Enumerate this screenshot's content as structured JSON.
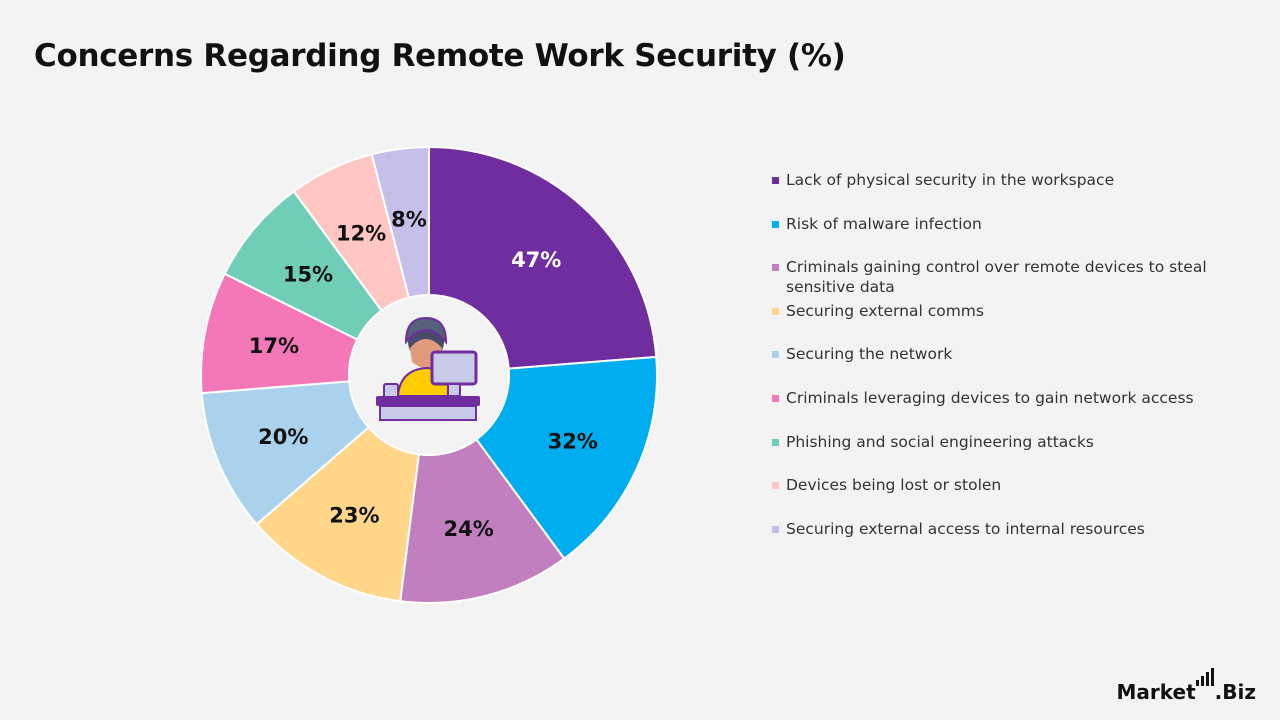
{
  "title": "Concerns Regarding Remote Work Security (%)",
  "brand": {
    "name": "Market",
    "suffix": ".Biz"
  },
  "chart_data": {
    "type": "pie",
    "title": "Concerns Regarding Remote Work Security (%)",
    "categories": [
      "Lack of physical security in the workspace",
      "Risk of malware infection",
      "Criminals gaining control over remote devices to steal sensitive data",
      "Securing external comms",
      "Securing the network",
      "Criminals leveraging devices to gain network access",
      "Phishing and social engineering attacks",
      "Devices being lost or stolen",
      "Securing external access to internal resources"
    ],
    "values": [
      47,
      32,
      24,
      23,
      20,
      17,
      15,
      12,
      8
    ],
    "labels": [
      "47%",
      "32%",
      "24%",
      "23%",
      "20%",
      "17%",
      "15%",
      "12%",
      "8%"
    ],
    "colors": [
      "#6f2da0",
      "#00adef",
      "#c27fc0",
      "#ffd68a",
      "#abd2ec",
      "#f478b8",
      "#6fcdb8",
      "#ffc6c4",
      "#c5bfea"
    ],
    "label_colors": [
      "#ffffff",
      "#111111",
      "#111111",
      "#111111",
      "#111111",
      "#111111",
      "#111111",
      "#111111",
      "#111111"
    ],
    "donut": true,
    "center_icon": "remote-worker-at-computer-icon",
    "legend_position": "right"
  }
}
